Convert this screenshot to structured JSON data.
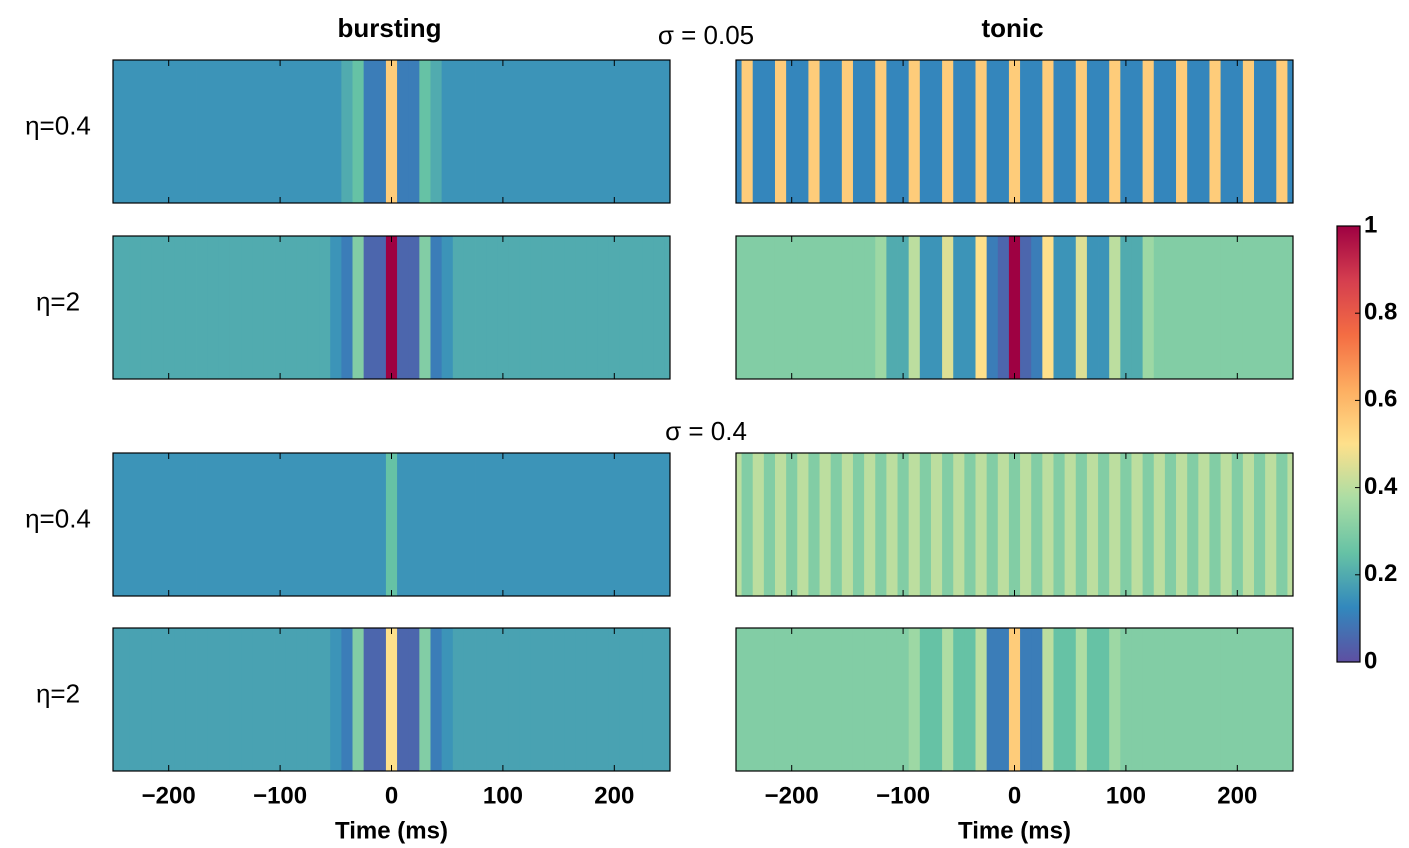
{
  "chart_data": {
    "type": "heatmap",
    "columns": [
      "bursting",
      "tonic"
    ],
    "xlabel": "Time (ms)",
    "xlim": [
      -250,
      250
    ],
    "xticks": [
      {
        "value": -200,
        "label": "−200"
      },
      {
        "value": -100,
        "label": "−100"
      },
      0,
      100,
      200
    ],
    "x": [
      -250,
      -240,
      -230,
      -220,
      -210,
      -200,
      -190,
      -180,
      -170,
      -160,
      -150,
      -140,
      -130,
      -120,
      -110,
      -100,
      -90,
      -80,
      -70,
      -60,
      -50,
      -40,
      -30,
      -20,
      -10,
      0,
      10,
      20,
      30,
      40,
      50,
      60,
      70,
      80,
      90,
      100,
      110,
      120,
      130,
      140,
      150,
      160,
      170,
      180,
      190,
      200,
      210,
      220,
      230,
      240,
      250
    ],
    "colorbar": {
      "lim": [
        0,
        1
      ],
      "ticks": [
        0,
        0.2,
        0.4,
        0.6,
        0.8,
        1
      ],
      "colors": [
        "#5e4fa2",
        "#3288bd",
        "#66c2a5",
        "#abdda4",
        "#fee08b",
        "#fdae61",
        "#f46d43",
        "#d53e4f",
        "#9e0142"
      ]
    },
    "groups": [
      {
        "title": "σ = 0.05",
        "rows": [
          {
            "label": "η=0.4",
            "series": [
              {
                "values": [
                  0.15,
                  0.15,
                  0.15,
                  0.15,
                  0.15,
                  0.15,
                  0.15,
                  0.15,
                  0.15,
                  0.15,
                  0.15,
                  0.15,
                  0.15,
                  0.15,
                  0.15,
                  0.15,
                  0.15,
                  0.15,
                  0.15,
                  0.15,
                  0.15,
                  0.2,
                  0.25,
                  0.1,
                  0.1,
                  0.55,
                  0.1,
                  0.1,
                  0.25,
                  0.2,
                  0.15,
                  0.15,
                  0.15,
                  0.15,
                  0.15,
                  0.15,
                  0.15,
                  0.15,
                  0.15,
                  0.15,
                  0.15,
                  0.15,
                  0.15,
                  0.15,
                  0.15,
                  0.15,
                  0.15,
                  0.15,
                  0.15,
                  0.15,
                  0.15
                ]
              },
              {
                "values": [
                  0.12,
                  0.55,
                  0.12,
                  0.12,
                  0.55,
                  0.12,
                  0.12,
                  0.55,
                  0.12,
                  0.12,
                  0.55,
                  0.12,
                  0.12,
                  0.55,
                  0.12,
                  0.12,
                  0.55,
                  0.12,
                  0.12,
                  0.55,
                  0.12,
                  0.12,
                  0.55,
                  0.12,
                  0.12,
                  0.55,
                  0.12,
                  0.12,
                  0.55,
                  0.12,
                  0.12,
                  0.55,
                  0.12,
                  0.12,
                  0.55,
                  0.12,
                  0.12,
                  0.55,
                  0.12,
                  0.12,
                  0.55,
                  0.12,
                  0.12,
                  0.55,
                  0.12,
                  0.12,
                  0.55,
                  0.12,
                  0.12,
                  0.55,
                  0.12
                ]
              }
            ]
          },
          {
            "label": "η=2",
            "series": [
              {
                "values": [
                  0.2,
                  0.2,
                  0.2,
                  0.2,
                  0.2,
                  0.2,
                  0.2,
                  0.2,
                  0.2,
                  0.2,
                  0.2,
                  0.2,
                  0.2,
                  0.2,
                  0.2,
                  0.2,
                  0.2,
                  0.2,
                  0.2,
                  0.2,
                  0.15,
                  0.1,
                  0.3,
                  0.05,
                  0.05,
                  1,
                  0.05,
                  0.05,
                  0.3,
                  0.1,
                  0.15,
                  0.2,
                  0.2,
                  0.2,
                  0.2,
                  0.2,
                  0.2,
                  0.2,
                  0.2,
                  0.2,
                  0.2,
                  0.2,
                  0.2,
                  0.2,
                  0.2,
                  0.2,
                  0.2,
                  0.2,
                  0.2,
                  0.2,
                  0.2
                ]
              },
              {
                "values": [
                  0.3,
                  0.3,
                  0.3,
                  0.3,
                  0.3,
                  0.3,
                  0.3,
                  0.3,
                  0.3,
                  0.3,
                  0.3,
                  0.3,
                  0.3,
                  0.35,
                  0.2,
                  0.2,
                  0.4,
                  0.15,
                  0.15,
                  0.45,
                  0.15,
                  0.15,
                  0.5,
                  0.1,
                  0.05,
                  1,
                  0.05,
                  0.1,
                  0.5,
                  0.15,
                  0.15,
                  0.45,
                  0.15,
                  0.15,
                  0.4,
                  0.2,
                  0.2,
                  0.35,
                  0.3,
                  0.3,
                  0.3,
                  0.3,
                  0.3,
                  0.3,
                  0.3,
                  0.3,
                  0.3,
                  0.3,
                  0.3,
                  0.3,
                  0.3
                ]
              }
            ]
          }
        ]
      },
      {
        "title": "σ = 0.4",
        "rows": [
          {
            "label": "η=0.4",
            "series": [
              {
                "values": [
                  0.15,
                  0.15,
                  0.15,
                  0.15,
                  0.15,
                  0.15,
                  0.15,
                  0.15,
                  0.15,
                  0.15,
                  0.15,
                  0.15,
                  0.15,
                  0.15,
                  0.15,
                  0.15,
                  0.15,
                  0.15,
                  0.15,
                  0.15,
                  0.15,
                  0.15,
                  0.15,
                  0.15,
                  0.15,
                  0.25,
                  0.15,
                  0.15,
                  0.15,
                  0.15,
                  0.15,
                  0.15,
                  0.15,
                  0.15,
                  0.15,
                  0.15,
                  0.15,
                  0.15,
                  0.15,
                  0.15,
                  0.15,
                  0.15,
                  0.15,
                  0.15,
                  0.15,
                  0.15,
                  0.15,
                  0.15,
                  0.15,
                  0.15,
                  0.15
                ]
              },
              {
                "values": [
                  0.4,
                  0.3,
                  0.4,
                  0.3,
                  0.4,
                  0.3,
                  0.4,
                  0.3,
                  0.4,
                  0.3,
                  0.4,
                  0.3,
                  0.4,
                  0.3,
                  0.4,
                  0.3,
                  0.4,
                  0.3,
                  0.4,
                  0.3,
                  0.4,
                  0.3,
                  0.4,
                  0.3,
                  0.4,
                  0.3,
                  0.4,
                  0.3,
                  0.4,
                  0.3,
                  0.4,
                  0.3,
                  0.4,
                  0.3,
                  0.4,
                  0.3,
                  0.4,
                  0.3,
                  0.4,
                  0.3,
                  0.4,
                  0.3,
                  0.4,
                  0.3,
                  0.4,
                  0.3,
                  0.4,
                  0.3,
                  0.4,
                  0.3,
                  0.4
                ]
              }
            ]
          },
          {
            "label": "η=2",
            "series": [
              {
                "values": [
                  0.18,
                  0.18,
                  0.18,
                  0.18,
                  0.18,
                  0.18,
                  0.18,
                  0.18,
                  0.18,
                  0.18,
                  0.18,
                  0.18,
                  0.18,
                  0.18,
                  0.18,
                  0.18,
                  0.18,
                  0.18,
                  0.18,
                  0.18,
                  0.15,
                  0.1,
                  0.3,
                  0.05,
                  0.05,
                  0.5,
                  0.05,
                  0.05,
                  0.3,
                  0.1,
                  0.15,
                  0.18,
                  0.18,
                  0.18,
                  0.18,
                  0.18,
                  0.18,
                  0.18,
                  0.18,
                  0.18,
                  0.18,
                  0.18,
                  0.18,
                  0.18,
                  0.18,
                  0.18,
                  0.18,
                  0.18,
                  0.18,
                  0.18,
                  0.18
                ]
              },
              {
                "values": [
                  0.3,
                  0.3,
                  0.3,
                  0.3,
                  0.3,
                  0.3,
                  0.3,
                  0.3,
                  0.3,
                  0.3,
                  0.3,
                  0.3,
                  0.3,
                  0.3,
                  0.3,
                  0.3,
                  0.35,
                  0.25,
                  0.25,
                  0.38,
                  0.25,
                  0.25,
                  0.4,
                  0.1,
                  0.1,
                  0.55,
                  0.1,
                  0.1,
                  0.4,
                  0.25,
                  0.25,
                  0.38,
                  0.25,
                  0.25,
                  0.35,
                  0.3,
                  0.3,
                  0.3,
                  0.3,
                  0.3,
                  0.3,
                  0.3,
                  0.3,
                  0.3,
                  0.3,
                  0.3,
                  0.3,
                  0.3,
                  0.3,
                  0.3,
                  0.3
                ]
              }
            ]
          }
        ]
      }
    ]
  }
}
